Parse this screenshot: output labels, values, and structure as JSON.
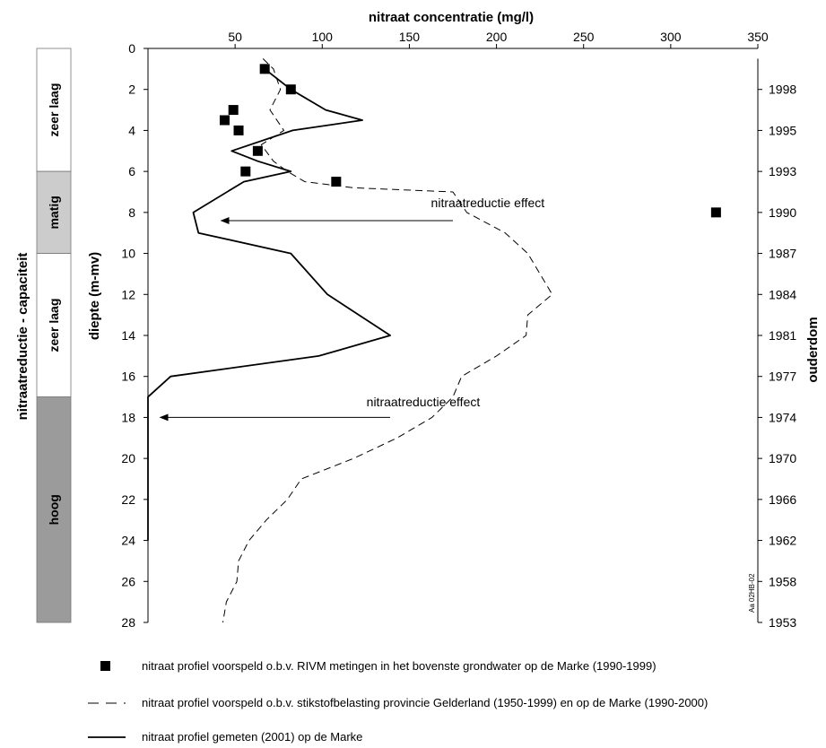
{
  "chart_data": {
    "type": "line",
    "title": "",
    "x_axis_title": "nitraat concentratie (mg/l)",
    "x_ticks": [
      "50",
      "100",
      "150",
      "200",
      "250",
      "300",
      "350"
    ],
    "xlim": [
      0,
      350
    ],
    "y_axis_title": "diepte (m-mv)",
    "y_ticks": [
      "0",
      "2",
      "4",
      "6",
      "8",
      "10",
      "12",
      "14",
      "16",
      "18",
      "20",
      "22",
      "24",
      "26",
      "28"
    ],
    "ylim": [
      0,
      28
    ],
    "y_inverted": true,
    "right_axis_title": "ouderdom",
    "right_axis_ticks": [
      {
        "depth": 2,
        "label": "1998"
      },
      {
        "depth": 4,
        "label": "1995"
      },
      {
        "depth": 6,
        "label": "1993"
      },
      {
        "depth": 8,
        "label": "1990"
      },
      {
        "depth": 10,
        "label": "1987"
      },
      {
        "depth": 12,
        "label": "1984"
      },
      {
        "depth": 14,
        "label": "1981"
      },
      {
        "depth": 16,
        "label": "1977"
      },
      {
        "depth": 18,
        "label": "1974"
      },
      {
        "depth": 20,
        "label": "1970"
      },
      {
        "depth": 22,
        "label": "1966"
      },
      {
        "depth": 24,
        "label": "1962"
      },
      {
        "depth": 26,
        "label": "1958"
      },
      {
        "depth": 28,
        "label": "1953"
      }
    ],
    "capacity_axis_title": "nitraatreductie - capaciteit",
    "capacity_bands": [
      {
        "label": "zeer laag",
        "from": 0,
        "to": 6,
        "color": "#ffffff"
      },
      {
        "label": "matig",
        "from": 6,
        "to": 10,
        "color": "#cccccc"
      },
      {
        "label": "zeer laag",
        "from": 10,
        "to": 17,
        "color": "#ffffff"
      },
      {
        "label": "hoog",
        "from": 17,
        "to": 28,
        "color": "#9b9b9b"
      }
    ],
    "series": [
      {
        "name": "nitraat profiel voorspeld o.b.v. RIVM metingen in het bovenste grondwater op de Marke (1990-1999)",
        "style": "markers",
        "points": [
          [
            67,
            1
          ],
          [
            82,
            2
          ],
          [
            49,
            3
          ],
          [
            44,
            3.5
          ],
          [
            52,
            4
          ],
          [
            63,
            5
          ],
          [
            56,
            6
          ],
          [
            108,
            6.5
          ],
          [
            326,
            8
          ]
        ]
      },
      {
        "name": "nitraat profiel voorspeld o.b.v. stikstofbelasting provincie Gelderland  (1950-1999) en op de Marke (1990-2000)",
        "style": "dashed",
        "points": [
          [
            66,
            0.5
          ],
          [
            72,
            1
          ],
          [
            76,
            2
          ],
          [
            70,
            3
          ],
          [
            78,
            4
          ],
          [
            65,
            4.7
          ],
          [
            72,
            5.5
          ],
          [
            80,
            6
          ],
          [
            90,
            6.5
          ],
          [
            118,
            6.8
          ],
          [
            175,
            7
          ],
          [
            183,
            8
          ],
          [
            205,
            9
          ],
          [
            218,
            10
          ],
          [
            225,
            11
          ],
          [
            232,
            12
          ],
          [
            218,
            13
          ],
          [
            217,
            14
          ],
          [
            200,
            15
          ],
          [
            180,
            16
          ],
          [
            175,
            17
          ],
          [
            163,
            18
          ],
          [
            143,
            19
          ],
          [
            118,
            20
          ],
          [
            88,
            21
          ],
          [
            80,
            22
          ],
          [
            68,
            23
          ],
          [
            58,
            24
          ],
          [
            52,
            25
          ],
          [
            51,
            26
          ],
          [
            45,
            27
          ],
          [
            43,
            28
          ]
        ]
      },
      {
        "name": "nitraat profiel gemeten (2001) op de Marke",
        "style": "solid",
        "points": [
          [
            67,
            1
          ],
          [
            82,
            2
          ],
          [
            102,
            3
          ],
          [
            123,
            3.5
          ],
          [
            83,
            4
          ],
          [
            48,
            5
          ],
          [
            63,
            5.5
          ],
          [
            82,
            6
          ],
          [
            55,
            6.5
          ],
          [
            26,
            8
          ],
          [
            29,
            9
          ],
          [
            82,
            10
          ],
          [
            103,
            12
          ],
          [
            139,
            14
          ],
          [
            98,
            15
          ],
          [
            13,
            16
          ],
          [
            0,
            17
          ],
          [
            0,
            24
          ]
        ]
      }
    ],
    "annotations": [
      {
        "text": "nitraatreductie effect",
        "text_at": [
          195,
          7.75
        ],
        "arrow_from": [
          175,
          8.4
        ],
        "arrow_to": [
          42,
          8.4
        ]
      },
      {
        "text": "nitraatreductie effect",
        "text_at": [
          158,
          17.45
        ],
        "arrow_from": [
          139,
          18
        ],
        "arrow_to": [
          7,
          18
        ]
      }
    ],
    "corner_code": "Aa 02HB-02",
    "grid": false,
    "legend_position": "bottom"
  }
}
